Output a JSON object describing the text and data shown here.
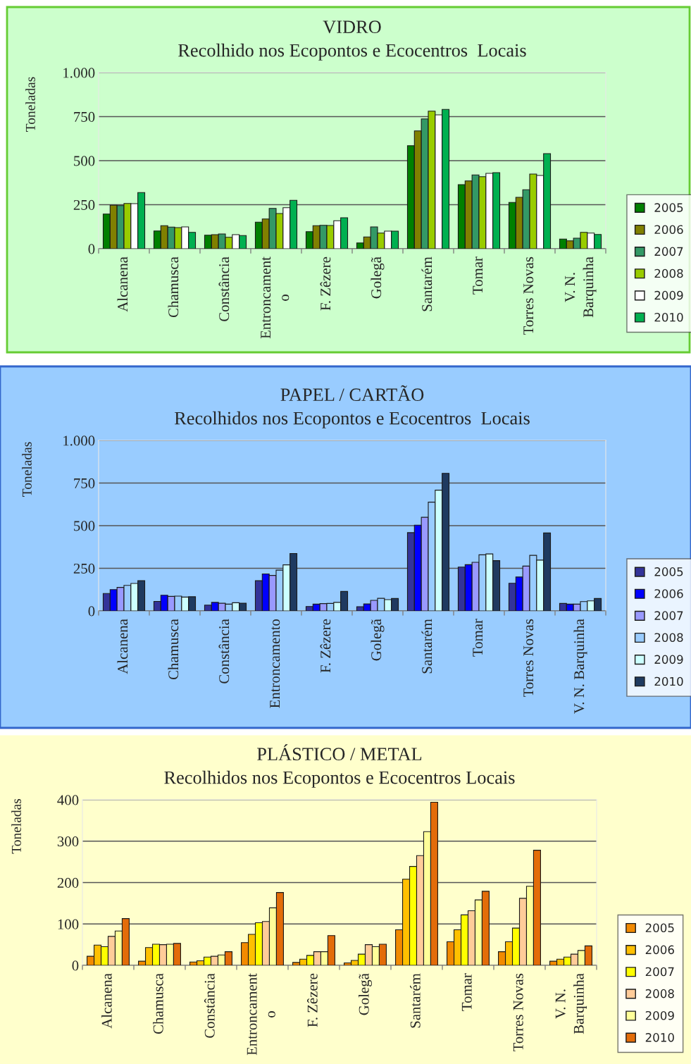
{
  "chart_data": [
    {
      "type": "bar",
      "title": "VIDRO",
      "subtitle": "Recolhido nos Ecopontos e Ecocentros  Locais",
      "ylabel": "Toneladas",
      "categories": [
        "Alcanena",
        "Chamusca",
        "Constância",
        "Entroncament\no",
        "F. Zêzere",
        "Golegã",
        "Santarém",
        "Tomar",
        "Torres Novas",
        "V. N.\nBarquinha"
      ],
      "series": [
        {
          "name": "2005",
          "color": "#008000",
          "values": [
            197,
            101,
            77,
            151,
            97,
            33,
            585,
            364,
            263,
            55
          ]
        },
        {
          "name": "2006",
          "color": "#808000",
          "values": [
            247,
            131,
            80,
            169,
            131,
            67,
            669,
            385,
            292,
            45
          ]
        },
        {
          "name": "2007",
          "color": "#339966",
          "values": [
            245,
            123,
            84,
            229,
            133,
            124,
            737,
            419,
            335,
            60
          ]
        },
        {
          "name": "2008",
          "color": "#99cc00",
          "values": [
            257,
            120,
            65,
            200,
            132,
            89,
            781,
            409,
            424,
            93
          ]
        },
        {
          "name": "2009",
          "color": "#ffffff",
          "values": [
            256,
            124,
            80,
            233,
            159,
            100,
            760,
            428,
            416,
            89
          ]
        },
        {
          "name": "2010",
          "color": "#00b050",
          "values": [
            319,
            93,
            75,
            275,
            176,
            100,
            791,
            432,
            540,
            81
          ]
        }
      ],
      "ylim": [
        0,
        1000
      ],
      "yticks": [
        0,
        250,
        500,
        750,
        {
          "value": 1000,
          "label": "1.000"
        }
      ],
      "grid": "y",
      "legend": "right"
    },
    {
      "type": "bar",
      "title": "PAPEL / CARTÃO",
      "subtitle": "Recolhidos nos Ecopontos e Ecocentros  Locais",
      "ylabel": "Toneladas",
      "categories": [
        "Alcanena",
        "Chamusca",
        "Constância",
        "Entroncamento",
        "F. Zêzere",
        "Golegã",
        "Santarém",
        "Tomar",
        "Torres Novas",
        "V. N. Barquinha"
      ],
      "series": [
        {
          "name": "2005",
          "color": "#333399",
          "values": [
            102,
            56,
            34,
            177,
            26,
            25,
            459,
            257,
            162,
            44
          ]
        },
        {
          "name": "2006",
          "color": "#0000ff",
          "values": [
            125,
            92,
            50,
            217,
            40,
            41,
            503,
            271,
            199,
            40
          ]
        },
        {
          "name": "2007",
          "color": "#9999ff",
          "values": [
            138,
            85,
            45,
            208,
            43,
            62,
            549,
            285,
            263,
            40
          ]
        },
        {
          "name": "2008",
          "color": "#99ccff",
          "values": [
            150,
            87,
            40,
            239,
            44,
            74,
            638,
            329,
            326,
            55
          ]
        },
        {
          "name": "2009",
          "color": "#ccffff",
          "values": [
            161,
            81,
            48,
            270,
            50,
            66,
            708,
            334,
            298,
            59
          ]
        },
        {
          "name": "2010",
          "color": "#1f3a60",
          "values": [
            177,
            83,
            45,
            337,
            114,
            73,
            807,
            295,
            457,
            73
          ]
        }
      ],
      "ylim": [
        0,
        1000
      ],
      "yticks": [
        0,
        250,
        500,
        750,
        {
          "value": 1000,
          "label": "1.000"
        }
      ],
      "grid": "y",
      "legend": "right"
    },
    {
      "type": "bar",
      "title": "PLÁSTICO / METAL",
      "subtitle": "Recolhidos nos Ecopontos e Ecocentros Locais",
      "ylabel": "Toneladas",
      "categories": [
        "Alcanena",
        "Chamusca",
        "Constância",
        "Entroncament\no",
        "F. Zêzere",
        "Golegã",
        "Santarém",
        "Tomar",
        "Torres Novas",
        "V. N.\nBarquinha"
      ],
      "series": [
        {
          "name": "2005",
          "color": "#f28a00",
          "values": [
            22,
            10,
            8,
            55,
            7,
            6,
            86,
            57,
            33,
            10
          ]
        },
        {
          "name": "2006",
          "color": "#ffc000",
          "values": [
            49,
            43,
            11,
            75,
            15,
            12,
            208,
            86,
            57,
            15
          ]
        },
        {
          "name": "2007",
          "color": "#ffff00",
          "values": [
            45,
            51,
            20,
            103,
            24,
            27,
            239,
            122,
            90,
            20
          ]
        },
        {
          "name": "2008",
          "color": "#ffcc99",
          "values": [
            70,
            50,
            22,
            106,
            33,
            50,
            265,
            132,
            162,
            27
          ]
        },
        {
          "name": "2009",
          "color": "#ffff99",
          "values": [
            83,
            51,
            25,
            139,
            33,
            45,
            323,
            158,
            191,
            36
          ]
        },
        {
          "name": "2010",
          "color": "#e36c09",
          "values": [
            113,
            53,
            33,
            176,
            72,
            51,
            394,
            179,
            278,
            47
          ]
        }
      ],
      "ylim": [
        0,
        400
      ],
      "yticks": [
        0,
        100,
        200,
        300,
        400
      ],
      "grid": "y",
      "legend": "right"
    }
  ]
}
